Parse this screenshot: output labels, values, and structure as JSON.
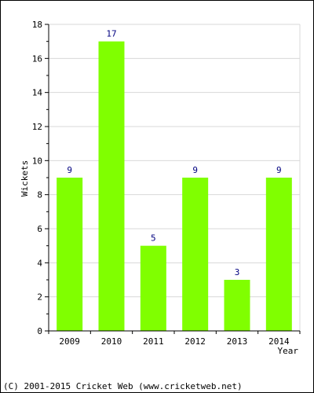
{
  "chart_data": {
    "type": "bar",
    "categories": [
      "2009",
      "2010",
      "2011",
      "2012",
      "2013",
      "2014"
    ],
    "values": [
      9,
      17,
      5,
      9,
      3,
      9
    ],
    "xlabel": "Year",
    "ylabel": "Wickets",
    "ylim": [
      0,
      18
    ],
    "yticks": [
      0,
      2,
      4,
      6,
      8,
      10,
      12,
      14,
      16,
      18
    ],
    "grid": true,
    "bar_color": "#80ff00",
    "value_label_color": "#000080"
  },
  "footer": {
    "copyright": "(C) 2001-2015 Cricket Web (www.cricketweb.net)"
  }
}
